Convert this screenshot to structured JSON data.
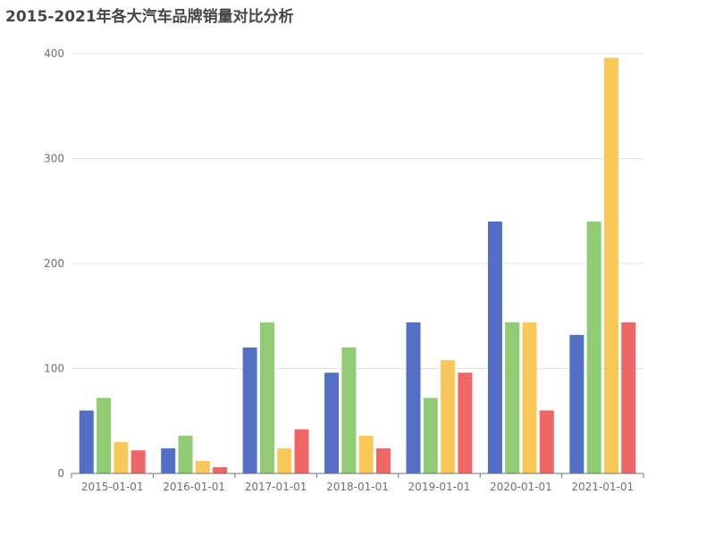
{
  "chart_data": {
    "type": "bar",
    "title": "2015-2021年各大汽车品牌销量对比分析",
    "categories": [
      "2015-01-01",
      "2016-01-01",
      "2017-01-01",
      "2018-01-01",
      "2019-01-01",
      "2020-01-01",
      "2021-01-01"
    ],
    "series": [
      {
        "values": [
          60,
          24,
          120,
          96,
          144,
          240,
          132
        ],
        "color": "#5470c6"
      },
      {
        "values": [
          72,
          36,
          144,
          120,
          72,
          144,
          240
        ],
        "color": "#91cc75"
      },
      {
        "values": [
          30,
          12,
          24,
          36,
          108,
          144,
          396
        ],
        "color": "#fac858"
      },
      {
        "values": [
          22,
          6,
          42,
          24,
          96,
          60,
          144
        ],
        "color": "#ee6666"
      }
    ],
    "y_ticks": [
      "0",
      "100",
      "200",
      "300",
      "400"
    ],
    "ylim": [
      0,
      400
    ],
    "grid": true,
    "legend": "none"
  }
}
